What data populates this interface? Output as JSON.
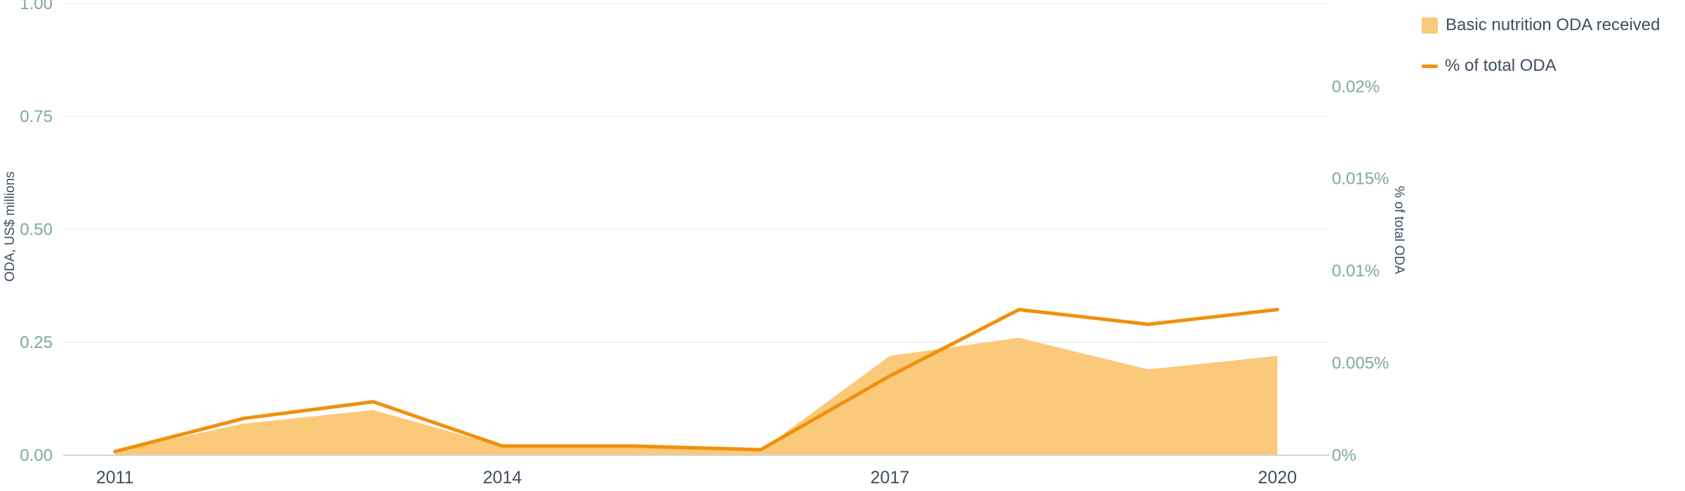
{
  "chart_data": {
    "type": "area",
    "title": "",
    "x": [
      2011,
      2012,
      2013,
      2014,
      2015,
      2016,
      2017,
      2018,
      2019,
      2020
    ],
    "x_ticks": [
      "2011",
      "2014",
      "2017",
      "2020"
    ],
    "xlim": [
      2010.6,
      2020.4
    ],
    "series": [
      {
        "name": "Basic nutrition ODA received",
        "type": "area",
        "axis": "left",
        "color": "#fbc97a",
        "values": [
          0.01,
          0.07,
          0.1,
          0.02,
          0.02,
          0.01,
          0.22,
          0.26,
          0.19,
          0.22
        ]
      },
      {
        "name": "% of total ODA",
        "type": "line",
        "axis": "right",
        "color": "#f0900e",
        "values": [
          0.0002,
          0.002,
          0.0029,
          0.0005,
          0.0005,
          0.0003,
          0.0043,
          0.0079,
          0.0071,
          0.0079
        ]
      }
    ],
    "y_left": {
      "label": "ODA, US$ millions",
      "ylim": [
        0,
        1
      ],
      "ticks": [
        0,
        0.25,
        0.5,
        0.75,
        1
      ],
      "tick_labels": [
        "0.00",
        "0.25",
        "0.50",
        "0.75",
        "1.00"
      ]
    },
    "y_right": {
      "label": "% of total ODA",
      "ylim": [
        0,
        0.0245
      ],
      "ticks": [
        0,
        0.005,
        0.01,
        0.015,
        0.02
      ],
      "tick_labels": [
        "0%",
        "0.005%",
        "0.01%",
        "0.015%",
        "0.02%"
      ]
    },
    "grid": true,
    "legend_position": "top-right"
  },
  "colors": {
    "area": "#fbc97a",
    "line": "#f0900e",
    "grid": "#eeeeee",
    "tick_label": "#7fa898",
    "text": "#3f4f62"
  }
}
